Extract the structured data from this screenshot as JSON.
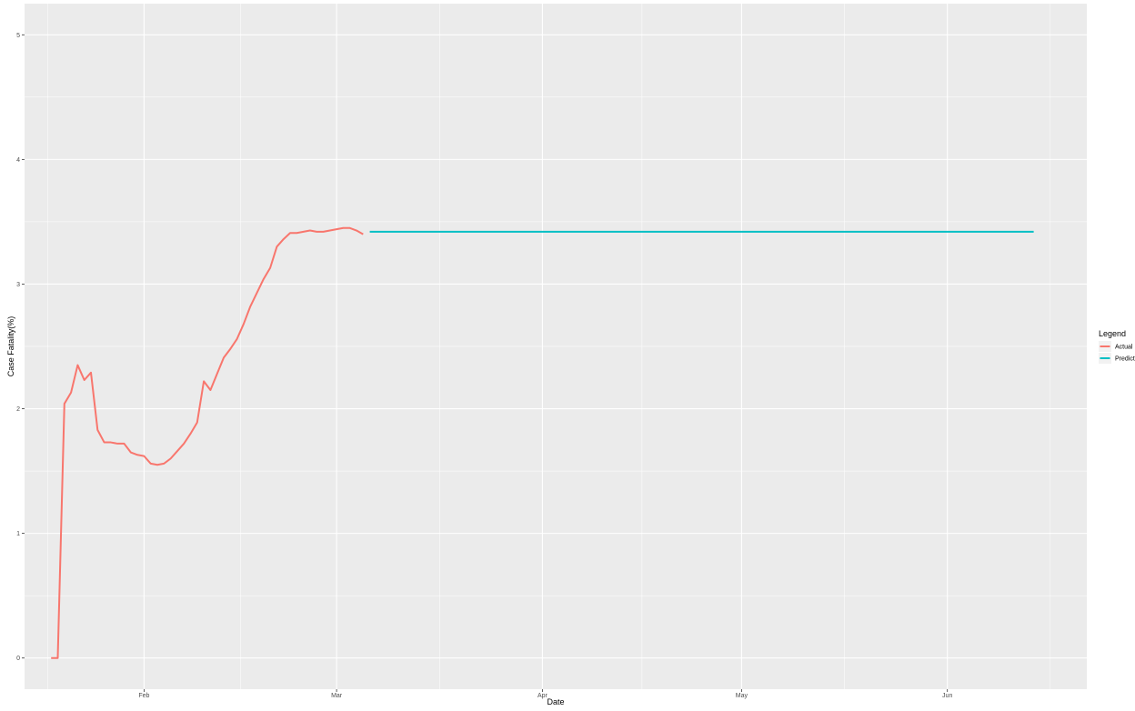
{
  "chart_data": {
    "type": "line",
    "title": "",
    "xlabel": "Date",
    "ylabel": "Case Fatality(%)",
    "ylim": [
      -0.25,
      5.25
    ],
    "xlim": [
      "2020-01-14",
      "2020-06-22"
    ],
    "x_ticks": [
      {
        "date": "2020-02-01",
        "label": "Feb"
      },
      {
        "date": "2020-03-01",
        "label": "Mar"
      },
      {
        "date": "2020-04-01",
        "label": "Apr"
      },
      {
        "date": "2020-05-01",
        "label": "May"
      },
      {
        "date": "2020-06-01",
        "label": "Jun"
      }
    ],
    "y_ticks": [
      0,
      1,
      2,
      3,
      4,
      5
    ],
    "grid": true,
    "legend": {
      "title": "Legend",
      "position": "right"
    },
    "series": [
      {
        "name": "Actual",
        "color": "#F8766D",
        "points": [
          [
            "2020-01-18",
            0.0
          ],
          [
            "2020-01-19",
            0.0
          ],
          [
            "2020-01-20",
            2.04
          ],
          [
            "2020-01-21",
            2.13
          ],
          [
            "2020-01-22",
            2.35
          ],
          [
            "2020-01-23",
            2.23
          ],
          [
            "2020-01-24",
            2.29
          ],
          [
            "2020-01-25",
            1.83
          ],
          [
            "2020-01-26",
            1.73
          ],
          [
            "2020-01-27",
            1.73
          ],
          [
            "2020-01-28",
            1.72
          ],
          [
            "2020-01-29",
            1.72
          ],
          [
            "2020-01-30",
            1.65
          ],
          [
            "2020-01-31",
            1.63
          ],
          [
            "2020-02-01",
            1.62
          ],
          [
            "2020-02-02",
            1.56
          ],
          [
            "2020-02-03",
            1.55
          ],
          [
            "2020-02-04",
            1.56
          ],
          [
            "2020-02-05",
            1.6
          ],
          [
            "2020-02-06",
            1.66
          ],
          [
            "2020-02-07",
            1.72
          ],
          [
            "2020-02-08",
            1.8
          ],
          [
            "2020-02-09",
            1.89
          ],
          [
            "2020-02-10",
            2.22
          ],
          [
            "2020-02-11",
            2.15
          ],
          [
            "2020-02-12",
            2.28
          ],
          [
            "2020-02-13",
            2.41
          ],
          [
            "2020-02-14",
            2.48
          ],
          [
            "2020-02-15",
            2.56
          ],
          [
            "2020-02-16",
            2.68
          ],
          [
            "2020-02-17",
            2.82
          ],
          [
            "2020-02-18",
            2.93
          ],
          [
            "2020-02-19",
            3.04
          ],
          [
            "2020-02-20",
            3.13
          ],
          [
            "2020-02-21",
            3.3
          ],
          [
            "2020-02-22",
            3.36
          ],
          [
            "2020-02-23",
            3.41
          ],
          [
            "2020-02-24",
            3.41
          ],
          [
            "2020-02-25",
            3.42
          ],
          [
            "2020-02-26",
            3.43
          ],
          [
            "2020-02-27",
            3.42
          ],
          [
            "2020-02-28",
            3.42
          ],
          [
            "2020-02-29",
            3.43
          ],
          [
            "2020-03-01",
            3.44
          ],
          [
            "2020-03-02",
            3.45
          ],
          [
            "2020-03-03",
            3.45
          ],
          [
            "2020-03-04",
            3.43
          ],
          [
            "2020-03-05",
            3.4
          ]
        ]
      },
      {
        "name": "Predict",
        "color": "#00BFC4",
        "points": [
          [
            "2020-03-06",
            3.42
          ],
          [
            "2020-06-14",
            3.42
          ]
        ]
      }
    ]
  }
}
